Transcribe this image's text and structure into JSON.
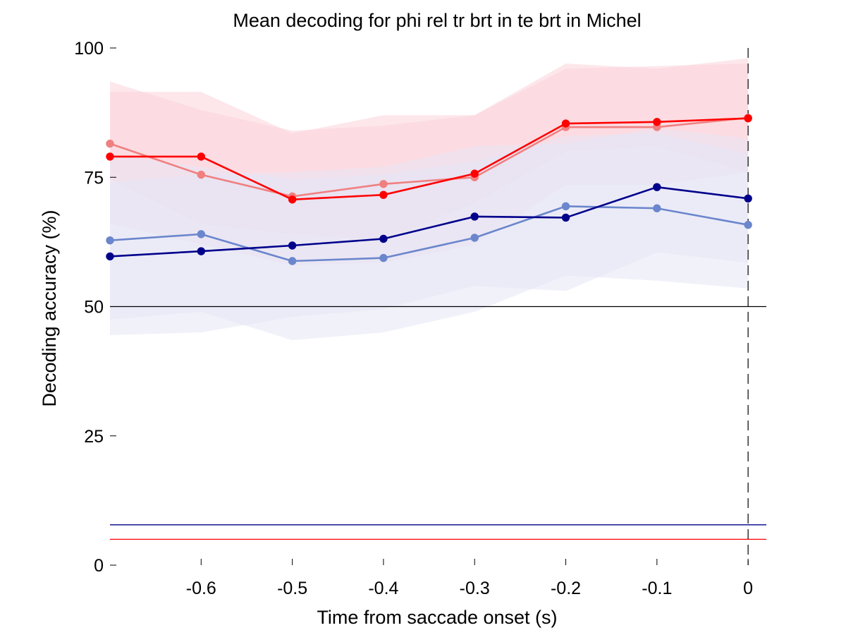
{
  "chart_data": {
    "type": "line",
    "title": "Mean decoding for phi rel tr brt in te brt in  Michel",
    "xlabel": "Time from saccade onset (s)",
    "ylabel": "Decoding accuracy (%)",
    "xlim": [
      -0.7,
      0.02
    ],
    "ylim": [
      0,
      100
    ],
    "x": [
      -0.7,
      -0.6,
      -0.5,
      -0.4,
      -0.3,
      -0.2,
      -0.1,
      0
    ],
    "x_ticks": [
      -0.6,
      -0.5,
      -0.4,
      -0.3,
      -0.2,
      -0.1,
      0
    ],
    "x_tick_labels": [
      "-0.6",
      "-0.5",
      "-0.4",
      "-0.3",
      "-0.2",
      "-0.1",
      "0"
    ],
    "y_ticks": [
      0,
      25,
      50,
      75,
      100
    ],
    "y_tick_labels": [
      "0",
      "25",
      "50",
      "75",
      "100"
    ],
    "grid": false,
    "series": [
      {
        "color": "#f08080",
        "values": [
          81.5,
          75.5,
          71.3,
          73.7,
          75.0,
          84.7,
          84.7,
          86.5
        ],
        "band_lower": [
          66.0,
          62.0,
          58.0,
          58.5,
          62.0,
          73.5,
          73.5,
          76.0
        ],
        "band_upper": [
          93.5,
          88.0,
          84.0,
          85.0,
          87.0,
          97.0,
          96.0,
          98.0
        ],
        "band_color": "#fbd3da"
      },
      {
        "color": "#ff0000",
        "values": [
          79.0,
          79.0,
          70.7,
          71.6,
          75.7,
          85.4,
          85.7,
          86.4
        ],
        "band_lower": [
          74.5,
          66.0,
          64.0,
          63.0,
          70.0,
          80.0,
          81.0,
          76.0
        ],
        "band_upper": [
          91.5,
          91.5,
          83.5,
          87.0,
          87.0,
          96.0,
          96.5,
          97.0
        ],
        "band_color": "#fbd3da"
      },
      {
        "color": "#6b86cc",
        "values": [
          62.8,
          64.0,
          58.8,
          59.4,
          63.3,
          69.4,
          69.0,
          65.8
        ],
        "band_lower": [
          47.5,
          49.0,
          43.5,
          45.0,
          49.0,
          56.0,
          55.0,
          53.5
        ],
        "band_upper": [
          79.5,
          77.0,
          74.5,
          75.5,
          78.0,
          83.0,
          83.5,
          79.5
        ],
        "band_color": "#e6e6f6"
      },
      {
        "color": "#00008b",
        "values": [
          59.7,
          60.7,
          61.8,
          63.1,
          67.4,
          67.2,
          73.1,
          70.9
        ],
        "band_lower": [
          44.5,
          45.0,
          48.0,
          49.5,
          54.0,
          53.0,
          60.5,
          58.5
        ],
        "band_upper": [
          74.0,
          75.5,
          76.0,
          77.0,
          81.0,
          81.5,
          84.5,
          82.5
        ],
        "band_color": "#e6e6f6"
      }
    ],
    "reference_lines": [
      {
        "orientation": "horizontal",
        "y": 50,
        "color": "#000000",
        "style": "solid"
      },
      {
        "orientation": "horizontal",
        "y": 7.8,
        "color": "#00008b",
        "style": "solid"
      },
      {
        "orientation": "horizontal",
        "y": 5.0,
        "color": "#ff0000",
        "style": "solid"
      },
      {
        "orientation": "vertical",
        "x": 0,
        "color": "#000000",
        "style": "dashed"
      }
    ]
  }
}
